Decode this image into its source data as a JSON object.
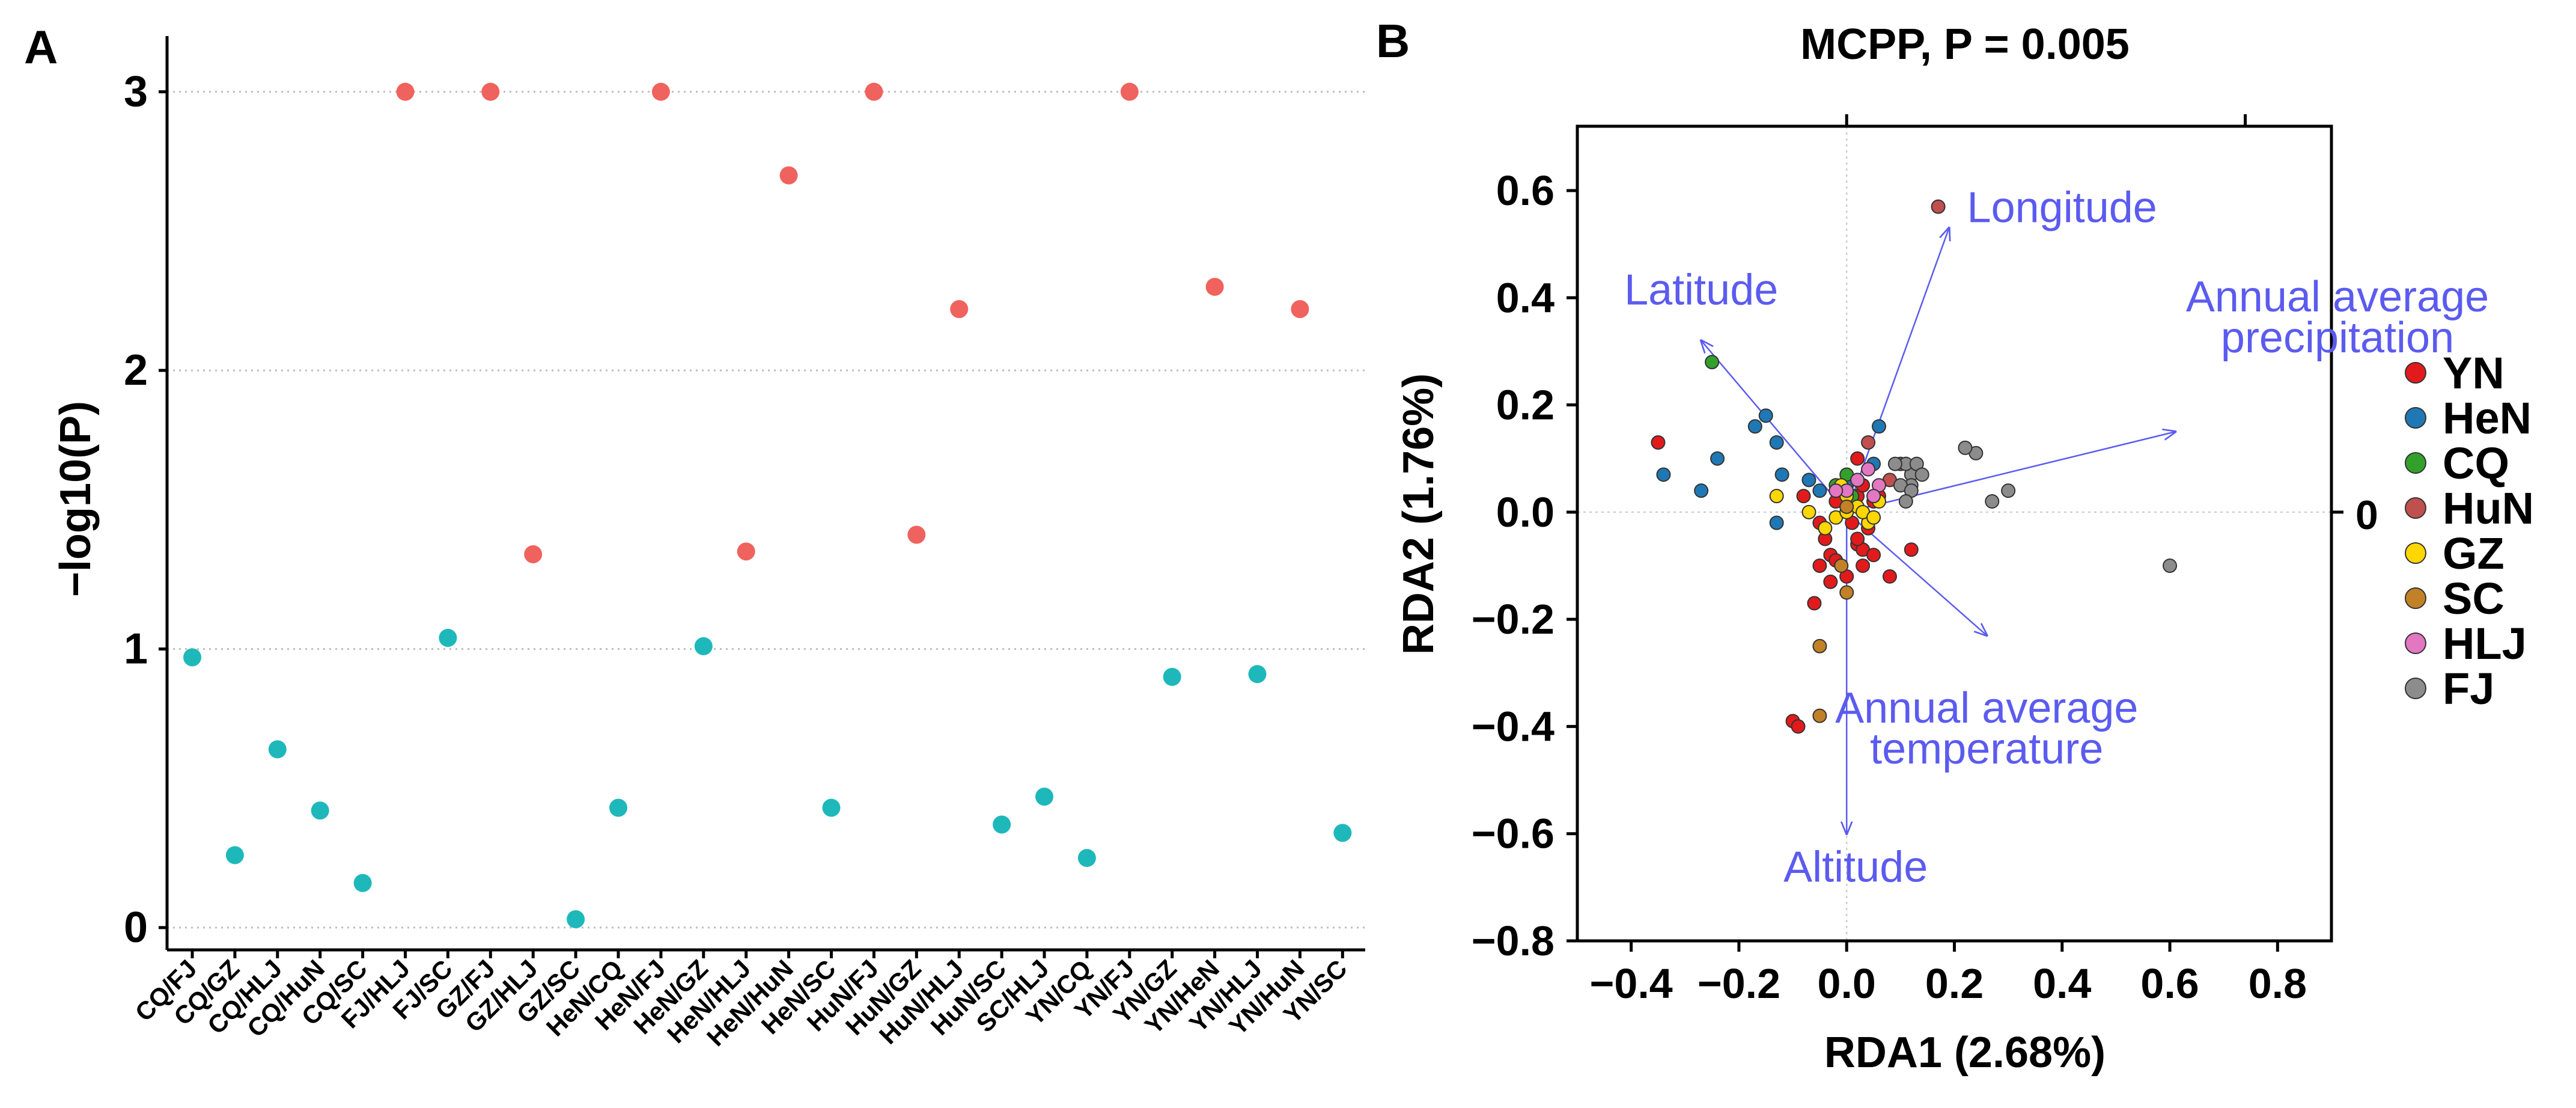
{
  "panel_a_label": "A",
  "panel_b_label": "B",
  "chart_data": [
    {
      "type": "scatter",
      "panel": "A",
      "title": "",
      "xlabel": "",
      "ylabel": "−log10(P)",
      "ylim": [
        -0.08,
        3.2
      ],
      "yticks": [
        0,
        1,
        2,
        3
      ],
      "grid": "horizontal dotted",
      "colors": {
        "significant": "#F0625E",
        "not_significant": "#1EB8BB"
      },
      "categories": [
        "CQ/FJ",
        "CQ/GZ",
        "CQ/HLJ",
        "CQ/HuN",
        "CQ/SC",
        "FJ/HLJ",
        "FJ/SC",
        "GZ/FJ",
        "GZ/HLJ",
        "GZ/SC",
        "HeN/CQ",
        "HeN/FJ",
        "HeN/GZ",
        "HeN/HLJ",
        "HeN/HuN",
        "HeN/SC",
        "HuN/FJ",
        "HuN/GZ",
        "HuN/HLJ",
        "HuN/SC",
        "SC/HLJ",
        "YN/CQ",
        "YN/FJ",
        "YN/GZ",
        "YN/HeN",
        "YN/HLJ",
        "YN/HuN",
        "YN/SC"
      ],
      "values": [
        0.97,
        0.26,
        0.64,
        0.42,
        0.16,
        3.0,
        1.04,
        3.0,
        1.34,
        0.03,
        0.43,
        3.0,
        1.01,
        1.35,
        2.7,
        0.43,
        3.0,
        1.41,
        2.22,
        0.37,
        0.47,
        0.25,
        3.0,
        0.9,
        2.3,
        0.91,
        2.22,
        0.34
      ],
      "significant": [
        false,
        false,
        false,
        false,
        false,
        true,
        false,
        true,
        true,
        false,
        false,
        true,
        false,
        true,
        true,
        false,
        true,
        true,
        true,
        false,
        false,
        false,
        true,
        false,
        true,
        false,
        true,
        false
      ]
    },
    {
      "type": "scatter",
      "panel": "B",
      "title": "MCPP, P = 0.005",
      "xlabel": "RDA1 (2.68%)",
      "ylabel": "RDA2 (1.76%)",
      "xlim": [
        -0.5,
        0.9
      ],
      "ylim": [
        -0.8,
        0.72
      ],
      "xticks": [
        -0.4,
        -0.2,
        0.0,
        0.2,
        0.4,
        0.6,
        0.8
      ],
      "xtick_labels": [
        "−0.4",
        "−0.2",
        "0.0",
        "0.2",
        "0.4",
        "0.6",
        "0.8"
      ],
      "yticks": [
        -0.8,
        -0.6,
        -0.4,
        -0.2,
        0.0,
        0.2,
        0.4,
        0.6
      ],
      "ytick_labels": [
        "−0.8",
        "−0.6",
        "−0.4",
        "−0.2",
        "0.0",
        "0.2",
        "0.4",
        "0.6"
      ],
      "right_axis_label": "0",
      "legend_position": "right",
      "legend": [
        {
          "name": "YN",
          "color": "#E31A1C"
        },
        {
          "name": "HeN",
          "color": "#1F78B4"
        },
        {
          "name": "CQ",
          "color": "#33A02C"
        },
        {
          "name": "HuN",
          "color": "#C0504D"
        },
        {
          "name": "GZ",
          "color": "#FFD700"
        },
        {
          "name": "SC",
          "color": "#C28127"
        },
        {
          "name": "HLJ",
          "color": "#E377C2"
        },
        {
          "name": "FJ",
          "color": "#8C8C8C"
        }
      ],
      "arrows": [
        {
          "name": "Longitude",
          "lines": [
            "Longitude"
          ],
          "x": 0.19,
          "y": 0.53,
          "anchor": "start"
        },
        {
          "name": "Latitude",
          "lines": [
            "Latitude"
          ],
          "x": -0.27,
          "y": 0.32,
          "anchor": "middle"
        },
        {
          "name": "Annual average precipitation",
          "lines": [
            "Annual average",
            "precipitation"
          ],
          "x": 0.61,
          "y": 0.15,
          "anchor": "middle"
        },
        {
          "name": "Annual average temperature",
          "lines": [
            "Annual average",
            "temperature"
          ],
          "x": 0.26,
          "y": -0.23,
          "anchor": "middle"
        },
        {
          "name": "Altitude",
          "lines": [
            "Altitude"
          ],
          "x": 0.0,
          "y": -0.6,
          "anchor": "middle"
        }
      ],
      "series": [
        {
          "name": "YN",
          "points": [
            [
              -0.35,
              0.13
            ],
            [
              -0.08,
              0.03
            ],
            [
              -0.05,
              -0.02
            ],
            [
              -0.03,
              -0.08
            ],
            [
              -0.05,
              -0.1
            ],
            [
              -0.06,
              -0.17
            ],
            [
              -0.1,
              -0.39
            ],
            [
              -0.09,
              -0.4
            ],
            [
              -0.04,
              -0.05
            ],
            [
              -0.02,
              -0.09
            ],
            [
              0.02,
              -0.06
            ],
            [
              0.03,
              -0.1
            ],
            [
              0.03,
              -0.07
            ],
            [
              0.05,
              -0.08
            ],
            [
              0.08,
              -0.12
            ],
            [
              0.12,
              -0.07
            ],
            [
              0.02,
              0.03
            ],
            [
              0.03,
              0.05
            ],
            [
              0.05,
              0.02
            ],
            [
              -0.02,
              0.02
            ],
            [
              0.01,
              -0.02
            ],
            [
              0.04,
              -0.03
            ],
            [
              0.06,
              0.03
            ],
            [
              0.02,
              0.1
            ],
            [
              -0.03,
              -0.13
            ],
            [
              0.0,
              -0.12
            ],
            [
              0.02,
              -0.05
            ]
          ]
        },
        {
          "name": "HeN",
          "points": [
            [
              -0.24,
              0.1
            ],
            [
              -0.17,
              0.16
            ],
            [
              -0.15,
              0.18
            ],
            [
              -0.13,
              0.13
            ],
            [
              -0.34,
              0.07
            ],
            [
              -0.27,
              0.04
            ],
            [
              -0.13,
              -0.02
            ],
            [
              -0.12,
              0.07
            ],
            [
              -0.07,
              0.06
            ],
            [
              -0.05,
              0.04
            ],
            [
              0.06,
              0.16
            ],
            [
              0.05,
              0.09
            ],
            [
              0.0,
              0.05
            ]
          ]
        },
        {
          "name": "CQ",
          "points": [
            [
              -0.25,
              0.28
            ],
            [
              -0.02,
              0.05
            ],
            [
              0.01,
              0.03
            ],
            [
              0.0,
              0.07
            ]
          ]
        },
        {
          "name": "HuN",
          "points": [
            [
              0.17,
              0.57
            ],
            [
              0.08,
              0.06
            ],
            [
              0.1,
              0.09
            ],
            [
              0.04,
              0.13
            ]
          ]
        },
        {
          "name": "GZ",
          "points": [
            [
              -0.13,
              0.03
            ],
            [
              -0.07,
              0.0
            ],
            [
              -0.02,
              -0.01
            ],
            [
              0.0,
              0.0
            ],
            [
              0.02,
              0.01
            ],
            [
              0.04,
              -0.02
            ],
            [
              0.0,
              0.03
            ],
            [
              -0.04,
              -0.03
            ],
            [
              0.03,
              0.0
            ],
            [
              0.05,
              -0.01
            ],
            [
              -0.01,
              0.05
            ],
            [
              0.06,
              0.02
            ]
          ]
        },
        {
          "name": "SC",
          "points": [
            [
              -0.05,
              -0.38
            ],
            [
              -0.05,
              -0.25
            ],
            [
              0.0,
              -0.15
            ],
            [
              0.0,
              0.01
            ],
            [
              -0.01,
              -0.1
            ]
          ]
        },
        {
          "name": "HLJ",
          "points": [
            [
              0.0,
              0.04
            ],
            [
              0.02,
              0.06
            ],
            [
              0.04,
              0.08
            ],
            [
              0.06,
              0.05
            ],
            [
              -0.02,
              0.04
            ],
            [
              0.05,
              0.03
            ]
          ]
        },
        {
          "name": "FJ",
          "points": [
            [
              0.6,
              -0.1
            ],
            [
              0.3,
              0.04
            ],
            [
              0.27,
              0.02
            ],
            [
              0.24,
              0.11
            ],
            [
              0.22,
              0.12
            ],
            [
              0.12,
              0.07
            ],
            [
              0.11,
              0.09
            ],
            [
              0.13,
              0.09
            ],
            [
              0.14,
              0.07
            ],
            [
              0.12,
              0.05
            ],
            [
              0.1,
              0.05
            ],
            [
              0.12,
              0.04
            ],
            [
              0.11,
              0.02
            ],
            [
              0.09,
              0.09
            ]
          ]
        }
      ]
    }
  ]
}
